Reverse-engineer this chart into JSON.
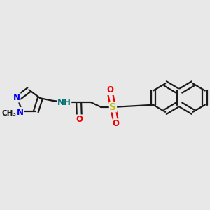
{
  "bg_color": "#e8e8e8",
  "bond_color": "#1a1a1a",
  "n_color": "#0000ee",
  "o_color": "#ee0000",
  "s_color": "#bbbb00",
  "nh_color": "#007070",
  "line_width": 1.6,
  "dbo": 0.012,
  "font_size": 8.5,
  "fig_size": [
    3.0,
    3.0
  ],
  "dpi": 100,
  "xlim": [
    0,
    1
  ],
  "ylim": [
    0,
    1
  ]
}
